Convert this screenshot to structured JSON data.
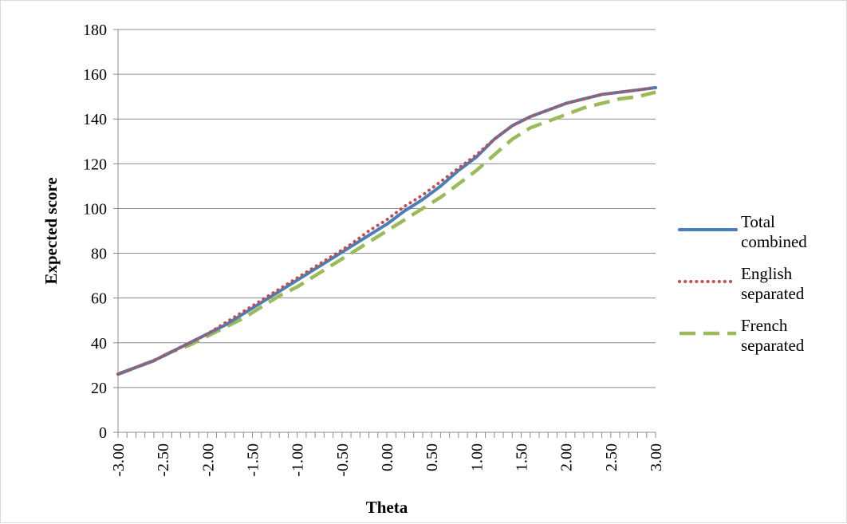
{
  "chart_data": {
    "type": "line",
    "title": "",
    "xlabel": "Theta",
    "ylabel": "Expected score",
    "ylim": [
      0,
      180
    ],
    "yticks": [
      0,
      20,
      40,
      60,
      80,
      100,
      120,
      140,
      160,
      180
    ],
    "xlim": [
      -3.0,
      3.0
    ],
    "xtick_labels": [
      "-3.00",
      "-2.50",
      "-2.00",
      "-1.50",
      "-1.00",
      "-0.50",
      "0.00",
      "0.50",
      "1.00",
      "1.50",
      "2.00",
      "2.50",
      "3.00"
    ],
    "grid": "horizontal",
    "legend_position": "right",
    "x": [
      -3.0,
      -2.8,
      -2.6,
      -2.4,
      -2.2,
      -2.0,
      -1.8,
      -1.6,
      -1.4,
      -1.2,
      -1.0,
      -0.8,
      -0.6,
      -0.4,
      -0.2,
      0.0,
      0.2,
      0.4,
      0.6,
      0.8,
      1.0,
      1.2,
      1.4,
      1.6,
      1.8,
      2.0,
      2.2,
      2.4,
      2.6,
      2.8,
      3.0
    ],
    "series": [
      {
        "name": "Total combined",
        "color": "#4a7ebb",
        "style": "solid",
        "values": [
          26,
          29,
          32,
          36,
          40,
          44,
          48,
          53,
          58,
          63,
          68,
          73,
          78,
          83,
          88,
          93,
          99,
          104,
          110,
          117,
          123,
          131,
          137,
          141,
          144,
          147,
          149,
          151,
          152,
          153,
          154
        ]
      },
      {
        "name": "English separated",
        "color": "#c0504d",
        "style": "dotted",
        "values": [
          26,
          29,
          32,
          36,
          40,
          44,
          49,
          54,
          59,
          64,
          69,
          74,
          79,
          84,
          90,
          95,
          101,
          106,
          112,
          118,
          124,
          131,
          137,
          141,
          144,
          147,
          149,
          151,
          152,
          153,
          154
        ]
      },
      {
        "name": "French separated",
        "color": "#9bbb59",
        "style": "dashed",
        "values": [
          26,
          29,
          32,
          36,
          39,
          43,
          47,
          51,
          56,
          61,
          65,
          70,
          75,
          80,
          85,
          90,
          95,
          100,
          105,
          111,
          117,
          124,
          131,
          136,
          139,
          142,
          145,
          147,
          149,
          150,
          152
        ]
      }
    ]
  }
}
